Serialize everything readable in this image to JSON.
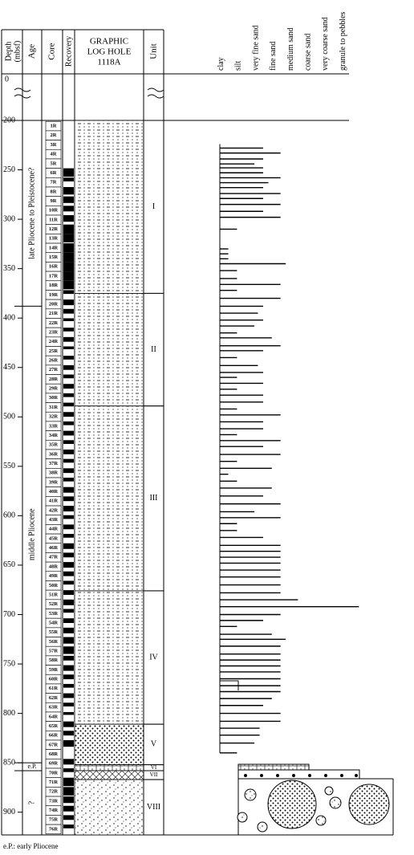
{
  "header": {
    "depth": [
      "Depth",
      "(mbsf)"
    ],
    "age": "Age",
    "core": "Core",
    "recovery": "Recovery",
    "graphic_log": [
      "GRAPHIC",
      "LOG HOLE",
      "1118A"
    ],
    "unit": "Unit",
    "grain_sizes": [
      "clay",
      "silt",
      "very fine sand",
      "fine sand",
      "medium sand",
      "coarse sand",
      "very coarse sand",
      "granule to pebbles"
    ]
  },
  "chart_data": {
    "type": "well-log",
    "top_depth": 0,
    "ylim": [
      200,
      923
    ],
    "yticks": [
      200,
      250,
      300,
      350,
      400,
      450,
      500,
      550,
      600,
      650,
      700,
      750,
      800,
      850,
      900
    ],
    "cores": {
      "interval": [
        201,
        922
      ],
      "names": [
        "1R",
        "2R",
        "3R",
        "4R",
        "5R",
        "6R",
        "7R",
        "8R",
        "9R",
        "10R",
        "11R",
        "12R",
        "13R",
        "14R",
        "15R",
        "16R",
        "17R",
        "18R",
        "19R",
        "20R",
        "21R",
        "22R",
        "23R",
        "24R",
        "25R",
        "26R",
        "27R",
        "28R",
        "29R",
        "30R",
        "31R",
        "32R",
        "33R",
        "34R",
        "35R",
        "36R",
        "37R",
        "38R",
        "39R",
        "40R",
        "41R",
        "42R",
        "43R",
        "44R",
        "45R",
        "46R",
        "47R",
        "48R",
        "49R",
        "50R",
        "51R",
        "52R",
        "53R",
        "54R",
        "55R",
        "56R",
        "57R",
        "58R",
        "59R",
        "60R",
        "61R",
        "62R",
        "63R",
        "64R",
        "65R",
        "66R",
        "67R",
        "68R",
        "69R",
        "70R",
        "71R",
        "72R",
        "73R",
        "74R",
        "75R",
        "76R"
      ],
      "recovery": [
        0,
        0,
        0,
        0,
        0,
        90,
        40,
        80,
        70,
        60,
        70,
        100,
        90,
        100,
        100,
        100,
        100,
        90,
        40,
        60,
        50,
        30,
        40,
        50,
        30,
        40,
        50,
        40,
        50,
        40,
        40,
        50,
        40,
        50,
        40,
        50,
        40,
        50,
        40,
        60,
        50,
        60,
        40,
        50,
        40,
        60,
        50,
        60,
        50,
        40,
        50,
        60,
        40,
        50,
        60,
        70,
        80,
        50,
        60,
        50,
        40,
        50,
        40,
        30,
        60,
        50,
        70,
        0,
        60,
        40,
        90,
        90,
        70,
        60,
        50,
        40
      ]
    },
    "units": [
      {
        "name": "I",
        "top": 200,
        "bottom": 375
      },
      {
        "name": "II",
        "top": 375,
        "bottom": 489
      },
      {
        "name": "III",
        "top": 489,
        "bottom": 676
      },
      {
        "name": "IV",
        "top": 676,
        "bottom": 811
      },
      {
        "name": "V",
        "top": 811,
        "bottom": 852
      },
      {
        "name": "VI",
        "top": 852,
        "bottom": 858
      },
      {
        "name": "VII",
        "top": 858,
        "bottom": 867
      },
      {
        "name": "VIII",
        "top": 867,
        "bottom": 923
      }
    ],
    "ages": [
      {
        "name": "late Pliocene to Pleistocene?",
        "top": 200,
        "bottom": 388
      },
      {
        "name": "middle Pliocene",
        "top": 388,
        "bottom": 850
      },
      {
        "name": "e.P.",
        "top": 850,
        "bottom": 858
      },
      {
        "name": "?",
        "top": 858,
        "bottom": 923
      }
    ],
    "grain_size": {
      "depth": [
        228,
        233,
        239,
        244,
        248,
        253,
        258,
        263,
        268,
        274,
        279,
        285,
        292,
        298,
        310,
        330,
        335,
        340,
        345,
        352,
        360,
        366,
        372,
        380,
        388,
        395,
        402,
        408,
        415,
        420,
        428,
        433,
        440,
        448,
        455,
        460,
        466,
        472,
        478,
        485,
        492,
        498,
        505,
        512,
        518,
        524,
        530,
        538,
        545,
        552,
        558,
        565,
        572,
        580,
        588,
        596,
        602,
        608,
        615,
        622,
        630,
        636,
        642,
        648,
        655,
        662,
        670,
        678,
        685,
        692,
        700,
        706,
        712,
        720,
        725,
        732,
        740,
        746,
        752,
        758,
        765,
        772,
        778,
        785,
        792,
        800,
        808,
        815,
        822,
        830,
        840
      ],
      "size": [
        3.5,
        4.5,
        3.5,
        3,
        3.5,
        3.5,
        4.5,
        3.8,
        3.5,
        4.5,
        3.5,
        4.5,
        3.5,
        4.5,
        2,
        1.5,
        1.5,
        1.5,
        4.8,
        2,
        2,
        4.5,
        2,
        4.5,
        3.5,
        3.2,
        3.5,
        3,
        2,
        4,
        4.5,
        3.5,
        2,
        3.2,
        3.5,
        2,
        3.5,
        2,
        3.5,
        3.5,
        2,
        4.5,
        3.5,
        3.5,
        2,
        4.5,
        3.5,
        4.5,
        2,
        4,
        1.5,
        2,
        4,
        3.5,
        4.5,
        3,
        4.5,
        2,
        2,
        3.5,
        4.5,
        4.5,
        4.5,
        4.5,
        4.5,
        4.5,
        4.5,
        4.5,
        5.5,
        9,
        4.5,
        3.5,
        2,
        4,
        4.8,
        4.5,
        4.5,
        4.5,
        4.5,
        4.5,
        4.5,
        4.5,
        4.5,
        4,
        3.5,
        4.5,
        4.5,
        3.3,
        3.3,
        3,
        2
      ]
    }
  },
  "footnote": "e.P.: early Pliocene"
}
